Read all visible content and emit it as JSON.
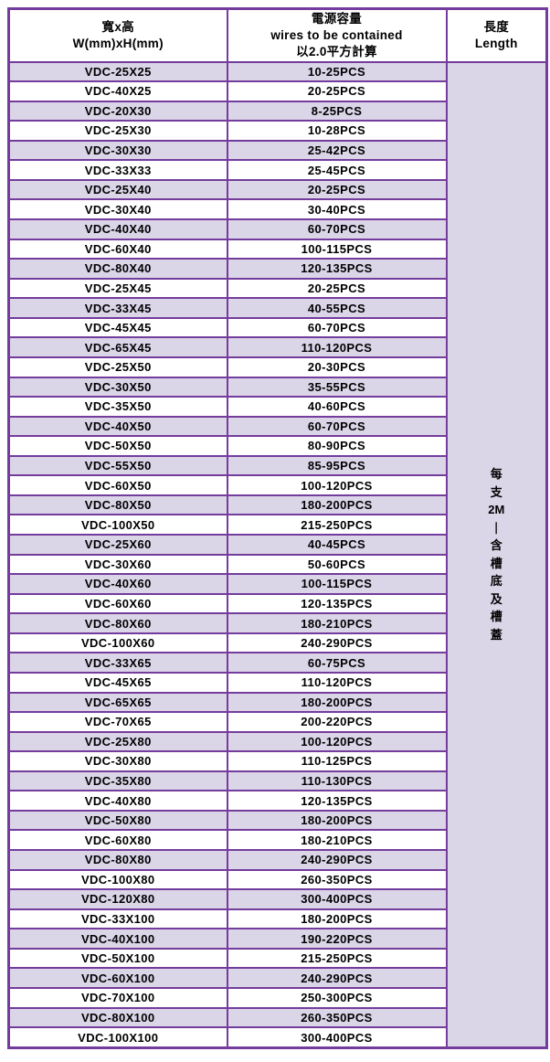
{
  "table": {
    "headers": {
      "size": {
        "line1": "寬x高",
        "line2": "W(mm)xH(mm)"
      },
      "capacity": {
        "line1": "電源容量",
        "line2": "wires to be contained",
        "line3": "以2.0平方計算"
      },
      "length": {
        "line1": "長度",
        "line2": "Length"
      }
    },
    "length_column": {
      "text": "每支2M—含槽底及槽蓋",
      "lines": [
        "每",
        "支",
        "2M",
        "—",
        "含",
        "槽",
        "底",
        "及",
        "槽",
        "蓋"
      ]
    },
    "rows": [
      {
        "model": "VDC-25X25",
        "wires": "10-25PCS"
      },
      {
        "model": "VDC-40X25",
        "wires": "20-25PCS"
      },
      {
        "model": "VDC-20X30",
        "wires": "8-25PCS"
      },
      {
        "model": "VDC-25X30",
        "wires": "10-28PCS"
      },
      {
        "model": "VDC-30X30",
        "wires": "25-42PCS"
      },
      {
        "model": "VDC-33X33",
        "wires": "25-45PCS"
      },
      {
        "model": "VDC-25X40",
        "wires": "20-25PCS"
      },
      {
        "model": "VDC-30X40",
        "wires": "30-40PCS"
      },
      {
        "model": "VDC-40X40",
        "wires": "60-70PCS"
      },
      {
        "model": "VDC-60X40",
        "wires": "100-115PCS"
      },
      {
        "model": "VDC-80X40",
        "wires": "120-135PCS"
      },
      {
        "model": "VDC-25X45",
        "wires": "20-25PCS"
      },
      {
        "model": "VDC-33X45",
        "wires": "40-55PCS"
      },
      {
        "model": "VDC-45X45",
        "wires": "60-70PCS"
      },
      {
        "model": "VDC-65X45",
        "wires": "110-120PCS"
      },
      {
        "model": "VDC-25X50",
        "wires": "20-30PCS"
      },
      {
        "model": "VDC-30X50",
        "wires": "35-55PCS"
      },
      {
        "model": "VDC-35X50",
        "wires": "40-60PCS"
      },
      {
        "model": "VDC-40X50",
        "wires": "60-70PCS"
      },
      {
        "model": "VDC-50X50",
        "wires": "80-90PCS"
      },
      {
        "model": "VDC-55X50",
        "wires": "85-95PCS"
      },
      {
        "model": "VDC-60X50",
        "wires": "100-120PCS"
      },
      {
        "model": "VDC-80X50",
        "wires": "180-200PCS"
      },
      {
        "model": "VDC-100X50",
        "wires": "215-250PCS"
      },
      {
        "model": "VDC-25X60",
        "wires": "40-45PCS"
      },
      {
        "model": "VDC-30X60",
        "wires": "50-60PCS"
      },
      {
        "model": "VDC-40X60",
        "wires": "100-115PCS"
      },
      {
        "model": "VDC-60X60",
        "wires": "120-135PCS"
      },
      {
        "model": "VDC-80X60",
        "wires": "180-210PCS"
      },
      {
        "model": "VDC-100X60",
        "wires": "240-290PCS"
      },
      {
        "model": "VDC-33X65",
        "wires": "60-75PCS"
      },
      {
        "model": "VDC-45X65",
        "wires": "110-120PCS"
      },
      {
        "model": "VDC-65X65",
        "wires": "180-200PCS"
      },
      {
        "model": "VDC-70X65",
        "wires": "200-220PCS"
      },
      {
        "model": "VDC-25X80",
        "wires": "100-120PCS"
      },
      {
        "model": "VDC-30X80",
        "wires": "110-125PCS"
      },
      {
        "model": "VDC-35X80",
        "wires": "110-130PCS"
      },
      {
        "model": "VDC-40X80",
        "wires": "120-135PCS"
      },
      {
        "model": "VDC-50X80",
        "wires": "180-200PCS"
      },
      {
        "model": "VDC-60X80",
        "wires": "180-210PCS"
      },
      {
        "model": "VDC-80X80",
        "wires": "240-290PCS"
      },
      {
        "model": "VDC-100X80",
        "wires": "260-350PCS"
      },
      {
        "model": "VDC-120X80",
        "wires": "300-400PCS"
      },
      {
        "model": "VDC-33X100",
        "wires": "180-200PCS"
      },
      {
        "model": "VDC-40X100",
        "wires": "190-220PCS"
      },
      {
        "model": "VDC-50X100",
        "wires": "215-250PCS"
      },
      {
        "model": "VDC-60X100",
        "wires": "240-290PCS"
      },
      {
        "model": "VDC-70X100",
        "wires": "250-300PCS"
      },
      {
        "model": "VDC-80X100",
        "wires": "260-350PCS"
      },
      {
        "model": "VDC-100X100",
        "wires": "300-400PCS"
      }
    ],
    "colors": {
      "border": "#743C9C",
      "shaded_row_bg": "#DBD5E8",
      "plain_row_bg": "#FFFFFF",
      "text": "#000000"
    }
  }
}
